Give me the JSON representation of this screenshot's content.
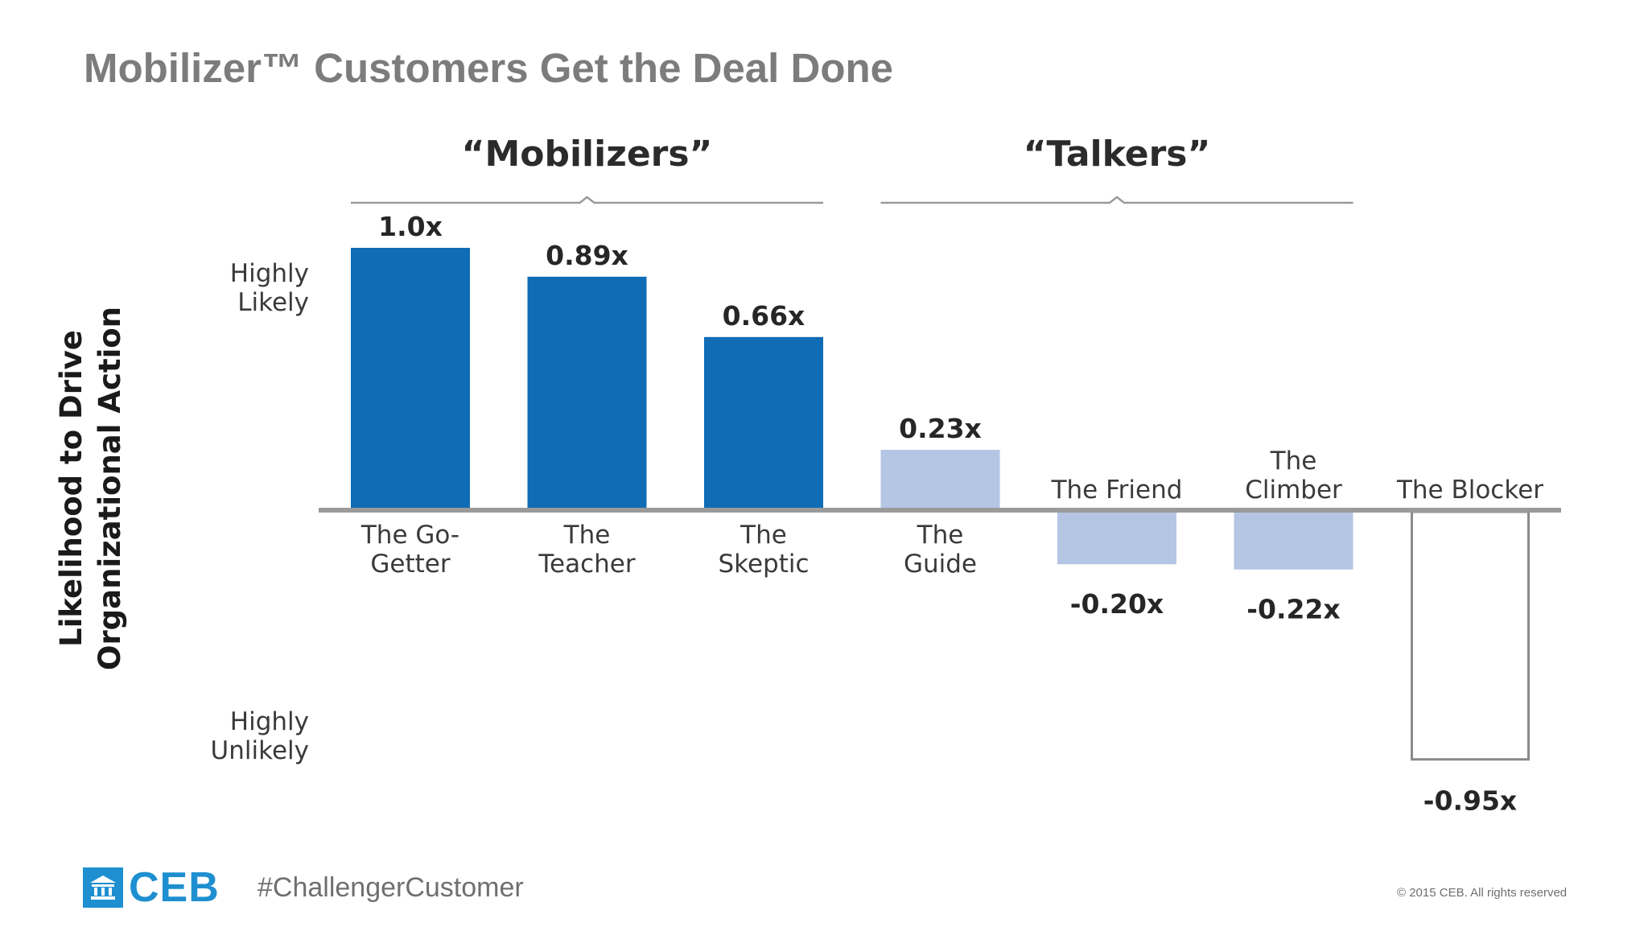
{
  "slide": {
    "title": "Mobilizer™ Customers Get the Deal Done",
    "hashtag": "#ChallengerCustomer",
    "copyright": "© 2015 CEB. All rights reserved",
    "logo_text": "CEB",
    "logo_icon": "building-columns-icon",
    "brand_color": "#1e8fd0"
  },
  "chart_data": {
    "type": "bar",
    "title": "",
    "ylabel_lines": [
      "Likelihood to Drive",
      "Organizational Action"
    ],
    "scale_labels": {
      "top": [
        "Highly",
        "Likely"
      ],
      "bottom": [
        "Highly",
        "Unlikely"
      ]
    },
    "groups": [
      {
        "label": "“Mobilizers”",
        "categories": [
          0,
          1,
          2
        ]
      },
      {
        "label": "“Talkers”",
        "categories": [
          3,
          4,
          5
        ]
      }
    ],
    "categories": [
      [
        "The Go-",
        "Getter"
      ],
      [
        "The",
        "Teacher"
      ],
      [
        "The",
        "Skeptic"
      ],
      [
        "The",
        "Guide"
      ],
      [
        "The Friend"
      ],
      [
        "The",
        "Climber"
      ],
      [
        "The Blocker"
      ]
    ],
    "values": [
      1.0,
      0.89,
      0.66,
      0.23,
      -0.2,
      -0.22,
      -0.95
    ],
    "value_labels": [
      "1.0x",
      "0.89x",
      "0.66x",
      "0.23x",
      "-0.20x",
      "-0.22x",
      "-0.95x"
    ],
    "bar_styles": [
      "dark",
      "dark",
      "dark",
      "light",
      "light",
      "light",
      "outline"
    ],
    "colors": {
      "dark": "#0f6cb5",
      "light": "#b4c6e4",
      "outline": "#8a8a8a",
      "baseline": "#9a9a9a",
      "bracket": "#9a9a9a"
    },
    "ylim": [
      -1.0,
      1.1
    ],
    "grid": false,
    "legend": "none"
  }
}
